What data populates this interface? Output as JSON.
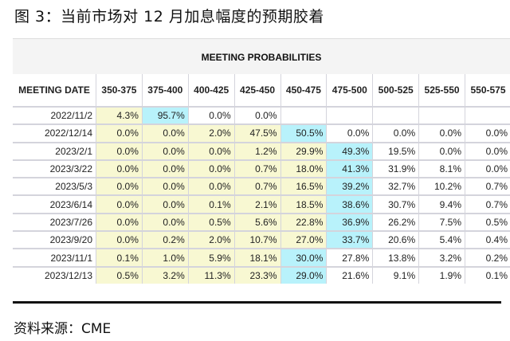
{
  "title": "图 3：当前市场对 12 月加息幅度的预期胶着",
  "table": {
    "heading": "MEETING PROBABILITIES",
    "date_header": "MEETING DATE",
    "columns": [
      "350-375",
      "375-400",
      "400-425",
      "425-450",
      "450-475",
      "475-500",
      "500-525",
      "525-550",
      "550-575"
    ],
    "colors": {
      "below_max": "#f8f8d2",
      "max": "#b8f2fb",
      "above_max": "#ffffff"
    },
    "rows": [
      {
        "date": "2022/11/2",
        "values": [
          "4.3%",
          "95.7%",
          "0.0%",
          "0.0%",
          "",
          "",
          "",
          "",
          ""
        ],
        "max_col": 1
      },
      {
        "date": "2022/12/14",
        "values": [
          "0.0%",
          "0.0%",
          "2.0%",
          "47.5%",
          "50.5%",
          "0.0%",
          "0.0%",
          "0.0%",
          "0.0%"
        ],
        "max_col": 4
      },
      {
        "date": "2023/2/1",
        "values": [
          "0.0%",
          "0.0%",
          "0.0%",
          "1.2%",
          "29.9%",
          "49.3%",
          "19.5%",
          "0.0%",
          "0.0%"
        ],
        "max_col": 5
      },
      {
        "date": "2023/3/22",
        "values": [
          "0.0%",
          "0.0%",
          "0.0%",
          "0.7%",
          "18.0%",
          "41.3%",
          "31.9%",
          "8.1%",
          "0.0%"
        ],
        "max_col": 5
      },
      {
        "date": "2023/5/3",
        "values": [
          "0.0%",
          "0.0%",
          "0.0%",
          "0.7%",
          "16.5%",
          "39.2%",
          "32.7%",
          "10.2%",
          "0.7%"
        ],
        "max_col": 5
      },
      {
        "date": "2023/6/14",
        "values": [
          "0.0%",
          "0.0%",
          "0.1%",
          "2.1%",
          "18.5%",
          "38.6%",
          "30.7%",
          "9.4%",
          "0.7%"
        ],
        "max_col": 5
      },
      {
        "date": "2023/7/26",
        "values": [
          "0.0%",
          "0.0%",
          "0.5%",
          "5.6%",
          "22.8%",
          "36.9%",
          "26.2%",
          "7.5%",
          "0.5%"
        ],
        "max_col": 5
      },
      {
        "date": "2023/9/20",
        "values": [
          "0.0%",
          "0.2%",
          "2.0%",
          "10.7%",
          "27.0%",
          "33.7%",
          "20.6%",
          "5.4%",
          "0.4%"
        ],
        "max_col": 5
      },
      {
        "date": "2023/11/1",
        "values": [
          "0.1%",
          "1.0%",
          "5.9%",
          "18.1%",
          "30.0%",
          "27.8%",
          "13.8%",
          "3.2%",
          "0.2%"
        ],
        "max_col": 4
      },
      {
        "date": "2023/12/13",
        "values": [
          "0.5%",
          "3.2%",
          "11.3%",
          "23.3%",
          "29.0%",
          "21.6%",
          "9.1%",
          "1.9%",
          "0.1%"
        ],
        "max_col": 4
      }
    ]
  },
  "source": "资料来源：CME"
}
